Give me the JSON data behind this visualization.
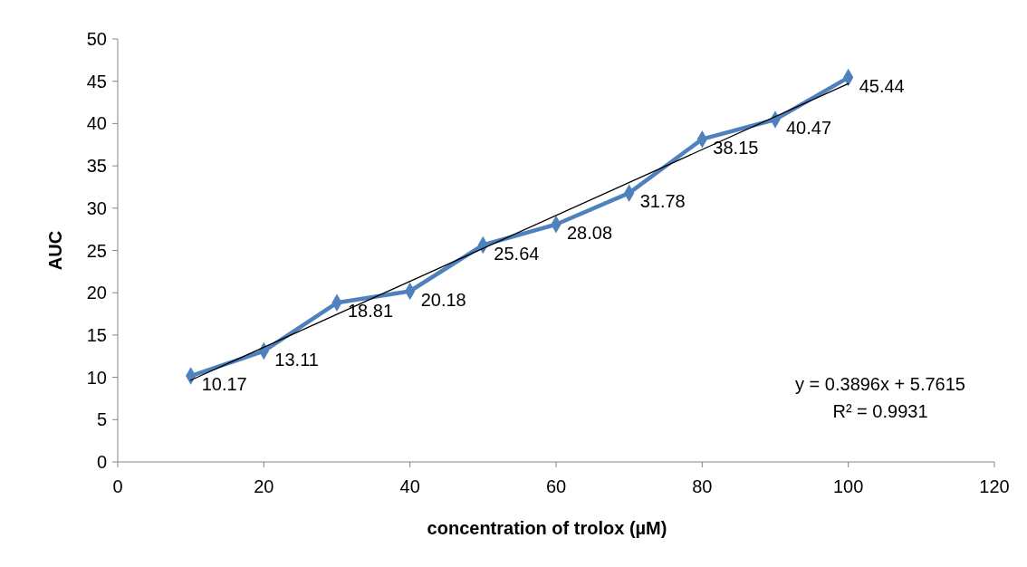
{
  "chart_data": {
    "type": "line",
    "xlabel": "concentration of trolox (µM)",
    "ylabel": "AUC",
    "xlim": [
      0,
      120
    ],
    "xticks": [
      0,
      20,
      40,
      60,
      80,
      100,
      120
    ],
    "ylim": [
      0,
      50
    ],
    "yticks": [
      0,
      5,
      10,
      15,
      20,
      25,
      30,
      35,
      40,
      45,
      50
    ],
    "x": [
      10,
      20,
      30,
      40,
      50,
      60,
      70,
      80,
      90,
      100
    ],
    "series": [
      {
        "color": "#4f81bd",
        "marker": "diamond",
        "values": [
          10.17,
          13.11,
          18.81,
          20.18,
          25.64,
          28.08,
          31.78,
          38.15,
          40.47,
          45.44
        ],
        "value_labels": [
          "10.17",
          "13.11",
          "18.81",
          "20.18",
          "25.64",
          "28.08",
          "31.78",
          "38.15",
          "40.47",
          "45.44"
        ]
      },
      {
        "type": "line",
        "color": "#000000",
        "marker": "none",
        "x": [
          10,
          100
        ],
        "values": [
          9.66,
          44.72
        ]
      }
    ],
    "annotations": [
      "y = 0.3896x + 5.7615",
      "R² = 0.9931"
    ],
    "grid": false,
    "line_style": "solid"
  }
}
